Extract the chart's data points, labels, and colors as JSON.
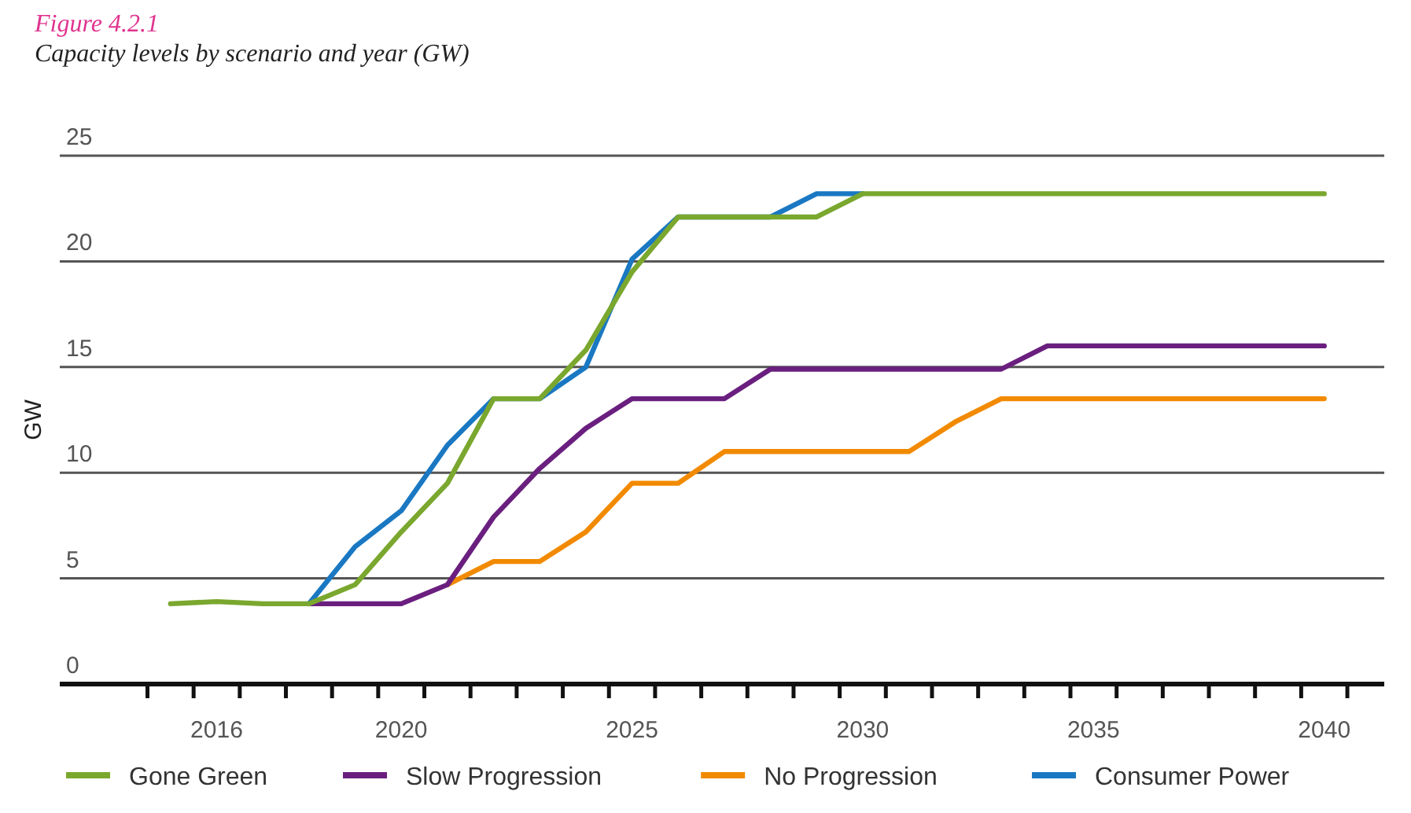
{
  "chart_data": {
    "type": "line",
    "title": "Figure 4.2.1",
    "subtitle": "Capacity levels by scenario and year (GW)",
    "ylabel": "GW",
    "xlim": [
      2012.6,
      2041.3
    ],
    "xticks": [
      {
        "value": 2014.5,
        "label": null
      },
      {
        "value": 2015.5,
        "label": null
      },
      2016,
      {
        "value": 2016.5,
        "label": null
      },
      {
        "value": 2017.5,
        "label": null
      },
      {
        "value": 2018.5,
        "label": null
      },
      {
        "value": 2019.5,
        "label": null
      },
      2020,
      {
        "value": 2020.5,
        "label": null
      },
      {
        "value": 2021.5,
        "label": null
      },
      {
        "value": 2022.5,
        "label": null
      },
      {
        "value": 2023.5,
        "label": null
      },
      {
        "value": 2024.5,
        "label": null
      },
      2025,
      {
        "value": 2025.5,
        "label": null
      },
      {
        "value": 2026.5,
        "label": null
      },
      {
        "value": 2027.5,
        "label": null
      },
      {
        "value": 2028.5,
        "label": null
      },
      {
        "value": 2029.5,
        "label": null
      },
      2030,
      {
        "value": 2030.5,
        "label": null
      },
      {
        "value": 2031.5,
        "label": null
      },
      {
        "value": 2032.5,
        "label": null
      },
      {
        "value": 2033.5,
        "label": null
      },
      {
        "value": 2034.5,
        "label": null
      },
      2035,
      {
        "value": 2035.5,
        "label": null
      },
      {
        "value": 2036.5,
        "label": null
      },
      {
        "value": 2037.5,
        "label": null
      },
      {
        "value": 2038.5,
        "label": null
      },
      {
        "value": 2039.5,
        "label": null
      },
      2040,
      {
        "value": 2040.5,
        "label": null
      }
    ],
    "ylim": [
      0,
      25
    ],
    "yticks": [
      0,
      5,
      10,
      15,
      20,
      25
    ],
    "grid": "y",
    "legend": "bottom",
    "marker": "none",
    "line_style": "solid",
    "series": [
      {
        "name": "Gone Green",
        "color": "#7aa72e",
        "x": [
          2015,
          2016,
          2017,
          2018,
          2019,
          2020,
          2021,
          2022,
          2023,
          2024,
          2025,
          2026,
          2027,
          2028,
          2029,
          2030,
          2031,
          2032,
          2033,
          2034,
          2035,
          2036,
          2037,
          2038,
          2039,
          2040
        ],
        "values": [
          3.8,
          3.9,
          3.8,
          3.8,
          4.7,
          7.2,
          9.5,
          13.5,
          13.5,
          15.8,
          19.5,
          22.1,
          22.1,
          22.1,
          22.1,
          23.2,
          23.2,
          23.2,
          23.2,
          23.2,
          23.2,
          23.2,
          23.2,
          23.2,
          23.2,
          23.2
        ]
      },
      {
        "name": "Slow Progression",
        "color": "#6a1f7f",
        "x": [
          2018,
          2019,
          2020,
          2021,
          2022,
          2023,
          2024,
          2025,
          2026,
          2027,
          2028,
          2029,
          2030,
          2031,
          2032,
          2033,
          2034,
          2035,
          2036,
          2037,
          2038,
          2039,
          2040
        ],
        "values": [
          3.8,
          3.8,
          3.8,
          4.7,
          7.9,
          10.2,
          12.1,
          13.5,
          13.5,
          13.5,
          14.9,
          14.9,
          14.9,
          14.9,
          14.9,
          14.9,
          16.0,
          16.0,
          16.0,
          16.0,
          16.0,
          16.0,
          16.0
        ]
      },
      {
        "name": "No Progression",
        "color": "#f28a00",
        "x": [
          2021,
          2022,
          2023,
          2024,
          2025,
          2026,
          2027,
          2028,
          2029,
          2030,
          2031,
          2032,
          2033,
          2034,
          2035,
          2036,
          2037,
          2038,
          2039,
          2040
        ],
        "values": [
          4.7,
          5.8,
          5.8,
          7.2,
          9.5,
          9.5,
          11.0,
          11.0,
          11.0,
          11.0,
          11.0,
          12.4,
          13.5,
          13.5,
          13.5,
          13.5,
          13.5,
          13.5,
          13.5,
          13.5
        ]
      },
      {
        "name": "Consumer Power",
        "color": "#1a78c2",
        "x": [
          2018,
          2019,
          2020,
          2021,
          2022,
          2023,
          2024,
          2025,
          2026,
          2027,
          2028,
          2029,
          2030
        ],
        "values": [
          3.8,
          6.5,
          8.2,
          11.3,
          13.5,
          13.5,
          15.0,
          20.1,
          22.1,
          22.1,
          22.1,
          23.2,
          23.2
        ]
      }
    ]
  }
}
